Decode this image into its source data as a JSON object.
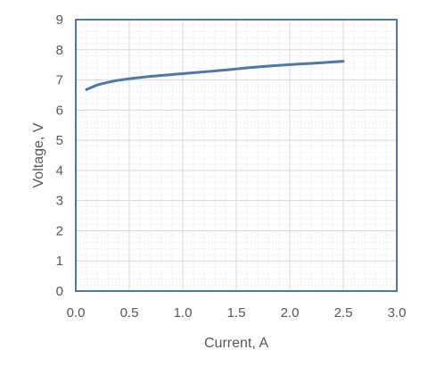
{
  "chart_data": {
    "type": "line",
    "xlabel": "Current, A",
    "ylabel": "Voltage, V",
    "xlim": [
      0,
      3.0
    ],
    "ylim": [
      0,
      9
    ],
    "x_ticks": [
      "0.0",
      "0.5",
      "1.0",
      "1.5",
      "2.0",
      "2.5",
      "3.0"
    ],
    "y_ticks": [
      "0",
      "1",
      "2",
      "3",
      "4",
      "5",
      "6",
      "7",
      "8",
      "9"
    ],
    "grid": true,
    "minor_grid": true,
    "legend": "none",
    "series": [
      {
        "color": "#4f78a8",
        "x": [
          0.1,
          0.2,
          0.3,
          0.4,
          0.5,
          0.6,
          0.7,
          0.8,
          0.9,
          1.0,
          1.2,
          1.4,
          1.6,
          1.8,
          2.0,
          2.2,
          2.5
        ],
        "y": [
          6.68,
          6.83,
          6.92,
          6.99,
          7.04,
          7.08,
          7.12,
          7.15,
          7.18,
          7.21,
          7.27,
          7.33,
          7.4,
          7.46,
          7.51,
          7.55,
          7.62
        ]
      }
    ]
  },
  "colors": {
    "line": "#4f78a8",
    "frame": "#4f78a8",
    "major_grid": "#d9d9d9",
    "minor_grid": "#eeeeee",
    "text": "#595959"
  }
}
